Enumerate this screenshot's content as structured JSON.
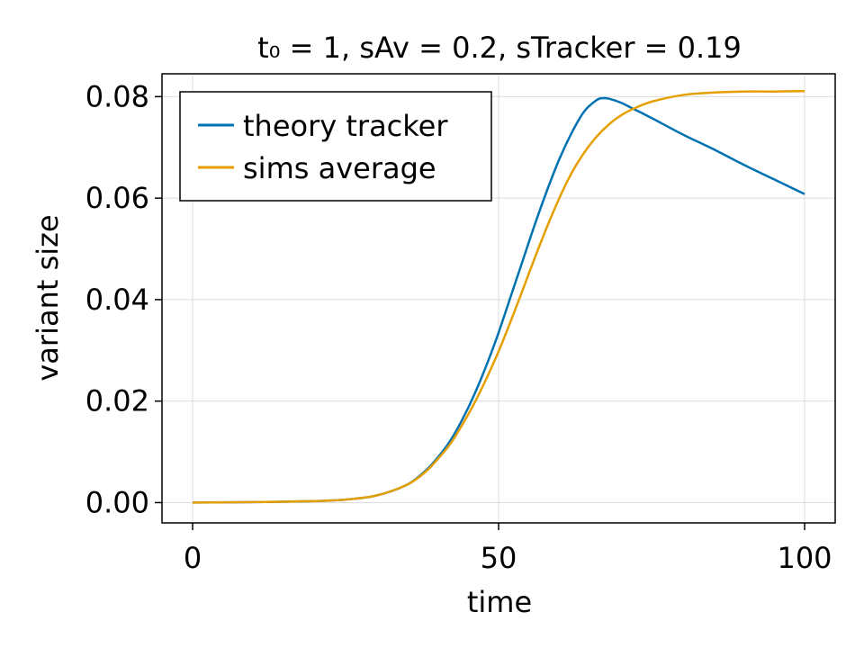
{
  "chart_data": {
    "type": "line",
    "title": "t₀ = 1, sAv = 0.2, sTracker = 0.19",
    "xlabel": "time",
    "ylabel": "variant size",
    "xlim": [
      -5,
      105
    ],
    "ylim": [
      -0.004,
      0.0845
    ],
    "xticks": [
      0,
      50,
      100
    ],
    "xtick_labels": [
      "0",
      "50",
      "100"
    ],
    "yticks": [
      0.0,
      0.02,
      0.04,
      0.06,
      0.08
    ],
    "ytick_labels": [
      "0.00",
      "0.02",
      "0.04",
      "0.06",
      "0.08"
    ],
    "grid": true,
    "legend": {
      "position": "top-left",
      "entries": [
        "theory tracker",
        "sims average"
      ]
    },
    "series": [
      {
        "name": "theory tracker",
        "color": "#0072b2",
        "x": [
          0,
          10,
          20,
          25,
          30,
          35,
          38,
          40,
          42,
          44,
          46,
          48,
          50,
          52,
          54,
          56,
          58,
          60,
          62,
          64,
          66,
          67,
          68,
          70,
          72,
          75,
          80,
          85,
          90,
          95,
          100
        ],
        "y": [
          0.0,
          0.0001,
          0.0003,
          0.0006,
          0.0014,
          0.0035,
          0.0062,
          0.0088,
          0.012,
          0.0162,
          0.0212,
          0.027,
          0.0335,
          0.0407,
          0.0479,
          0.0551,
          0.0618,
          0.0679,
          0.073,
          0.0771,
          0.0793,
          0.0797,
          0.0796,
          0.0788,
          0.0776,
          0.0758,
          0.0726,
          0.0697,
          0.0666,
          0.0637,
          0.0608
        ]
      },
      {
        "name": "sims average",
        "color": "#e69f00",
        "x": [
          0,
          10,
          20,
          25,
          30,
          35,
          38,
          40,
          42,
          44,
          46,
          48,
          50,
          52,
          54,
          56,
          58,
          60,
          62,
          64,
          66,
          68,
          70,
          72,
          75,
          80,
          85,
          90,
          95,
          100
        ],
        "y": [
          0.0,
          0.0001,
          0.0003,
          0.0006,
          0.0014,
          0.0035,
          0.006,
          0.0085,
          0.0114,
          0.0152,
          0.0195,
          0.0244,
          0.0298,
          0.0358,
          0.0421,
          0.0485,
          0.0546,
          0.0602,
          0.0651,
          0.069,
          0.0721,
          0.0745,
          0.0763,
          0.0776,
          0.079,
          0.0803,
          0.0808,
          0.081,
          0.081,
          0.0811
        ]
      }
    ]
  }
}
